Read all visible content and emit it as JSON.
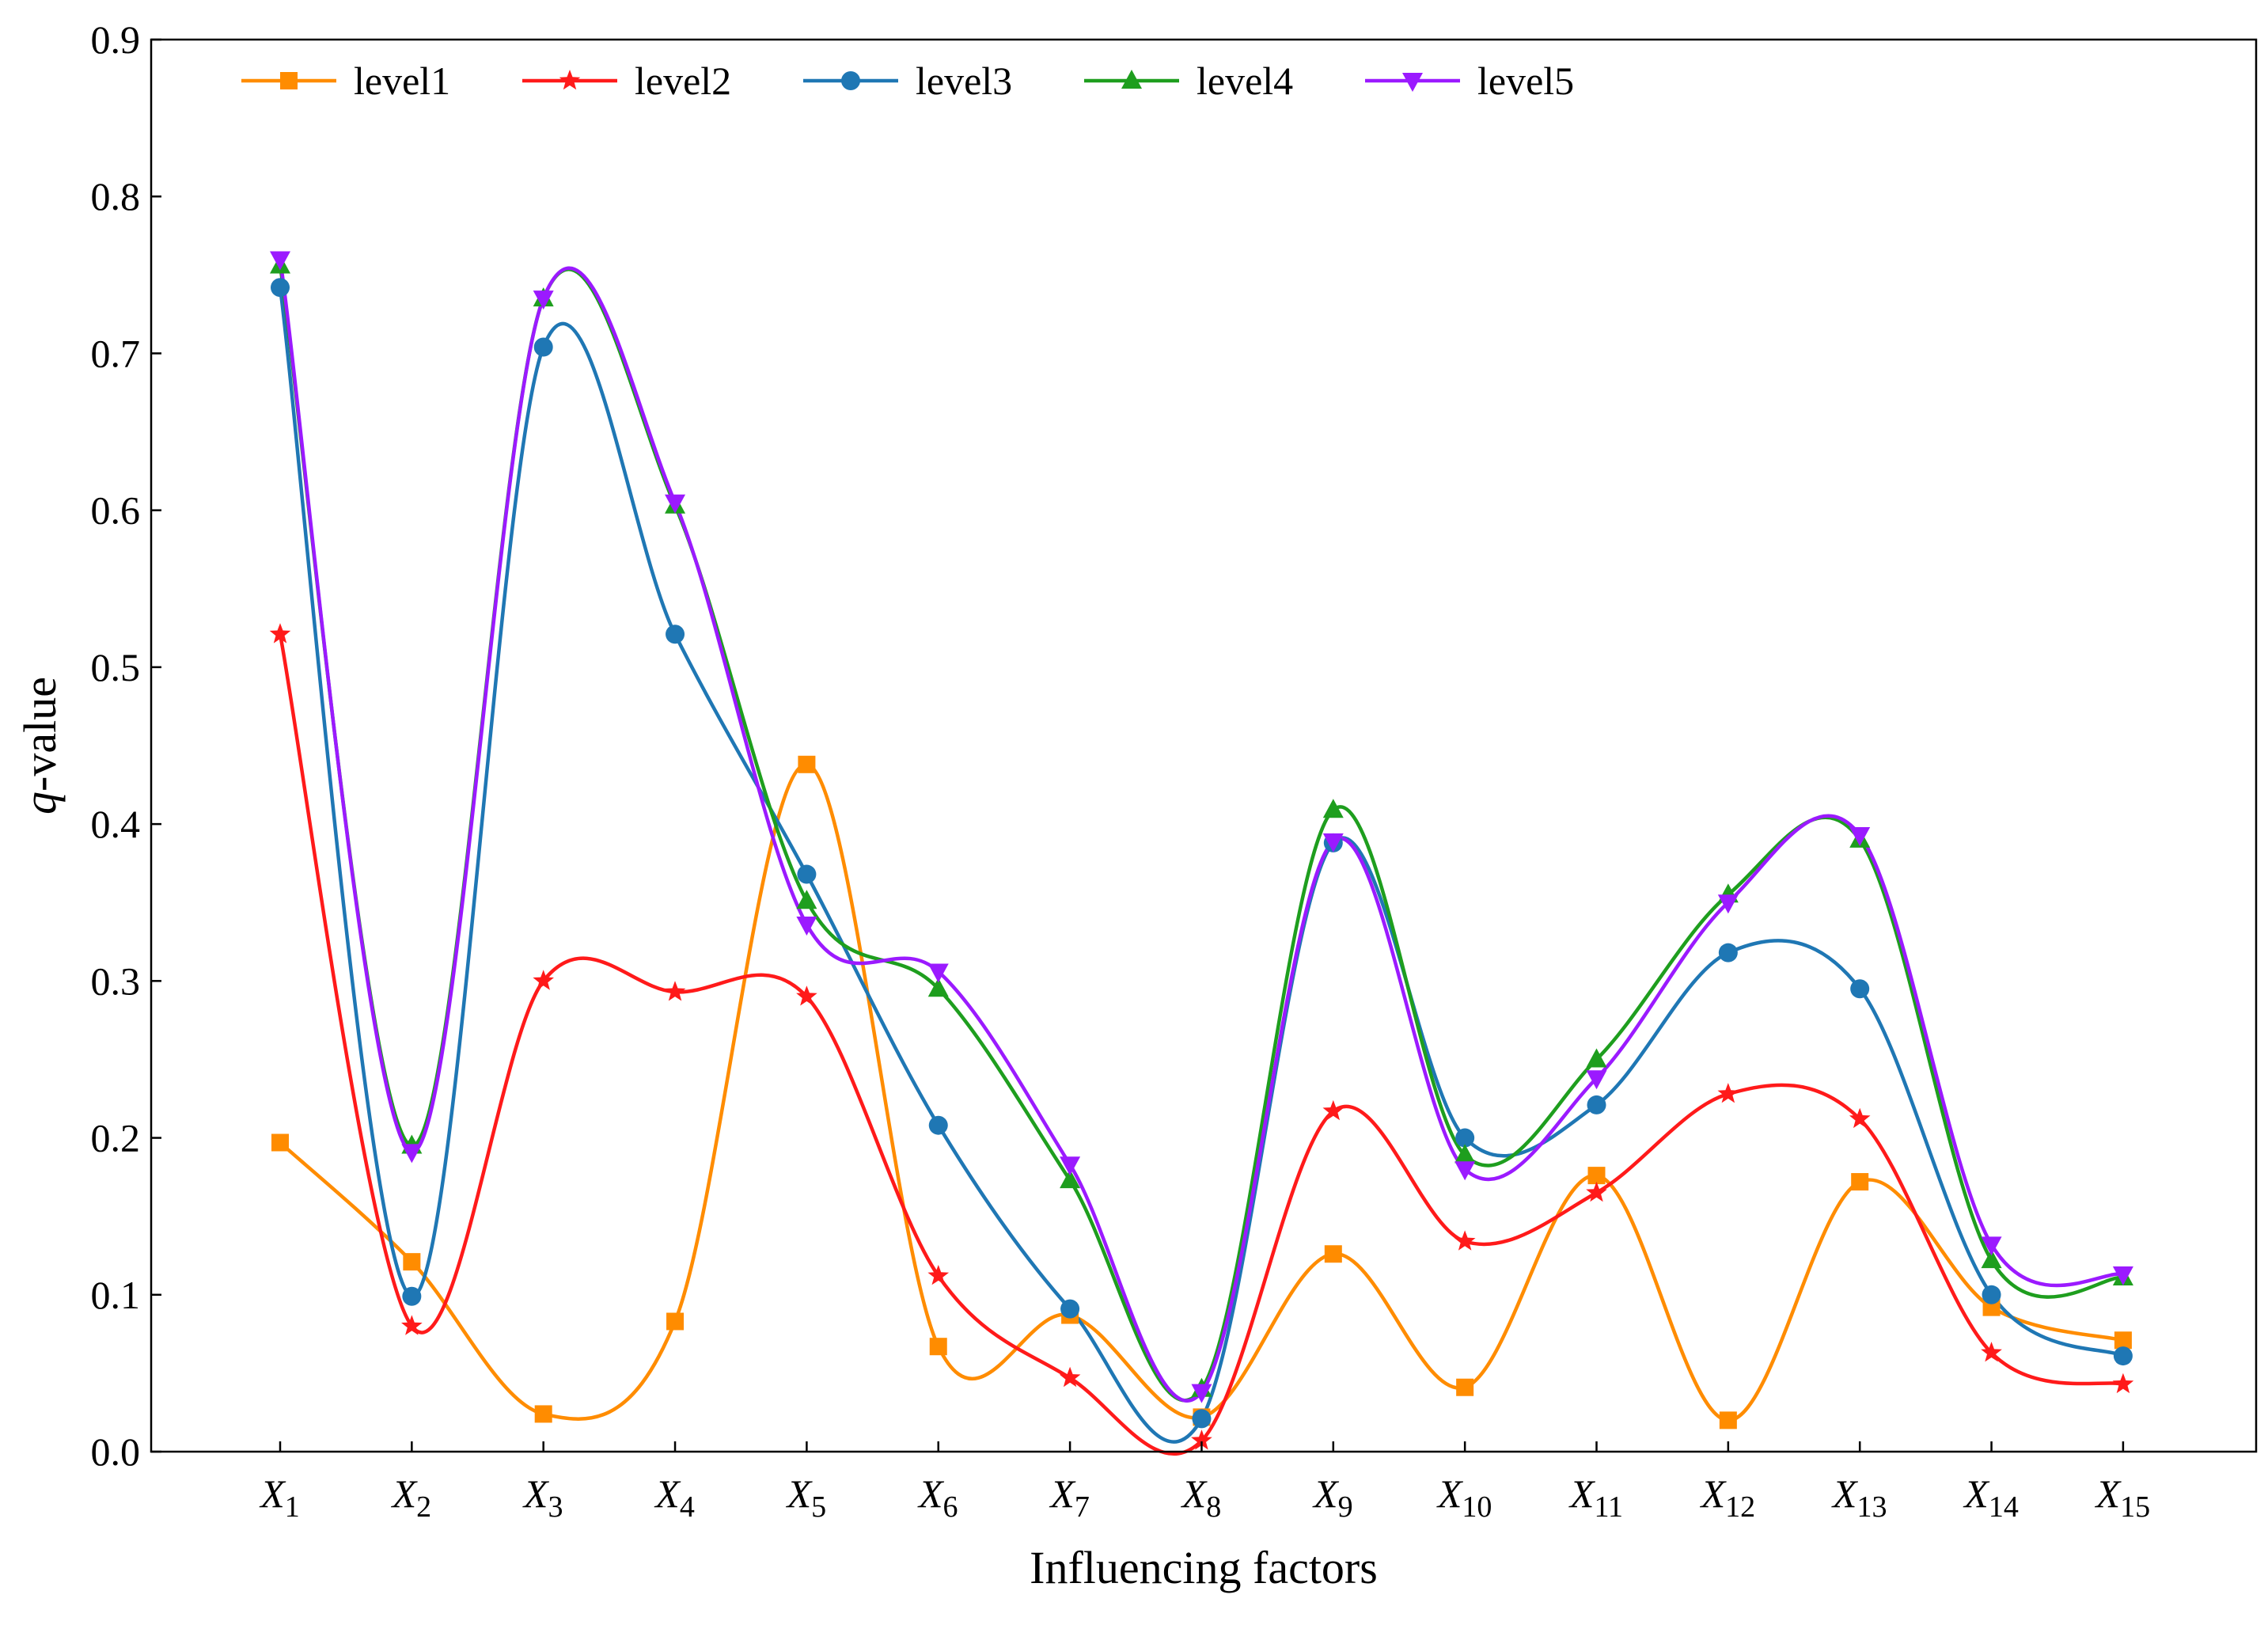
{
  "chart_data": {
    "type": "line",
    "title": "",
    "xlabel": "Influencing factors",
    "ylabel": "-value",
    "ylabel_italic_prefix": "q",
    "ylim": [
      0.0,
      0.9
    ],
    "yticks": [
      "0.0",
      "0.1",
      "0.2",
      "0.3",
      "0.4",
      "0.5",
      "0.6",
      "0.7",
      "0.8",
      "0.9"
    ],
    "categories": [
      {
        "base": "X",
        "sub": "1"
      },
      {
        "base": "X",
        "sub": "2"
      },
      {
        "base": "X",
        "sub": "3"
      },
      {
        "base": "X",
        "sub": "4"
      },
      {
        "base": "X",
        "sub": "5"
      },
      {
        "base": "X",
        "sub": "6"
      },
      {
        "base": "X",
        "sub": "7"
      },
      {
        "base": "X",
        "sub": "8"
      },
      {
        "base": "X",
        "sub": "9"
      },
      {
        "base": "X",
        "sub": "10"
      },
      {
        "base": "X",
        "sub": "11"
      },
      {
        "base": "X",
        "sub": "12"
      },
      {
        "base": "X",
        "sub": "13"
      },
      {
        "base": "X",
        "sub": "14"
      },
      {
        "base": "X",
        "sub": "15"
      }
    ],
    "legend_position": "top-left",
    "grid": false,
    "series": [
      {
        "name": "level1",
        "color": "#ff8c00",
        "marker": "square",
        "values": [
          0.197,
          0.121,
          0.024,
          0.083,
          0.438,
          0.067,
          0.087,
          0.022,
          0.126,
          0.041,
          0.176,
          0.02,
          0.172,
          0.092,
          0.071
        ]
      },
      {
        "name": "level2",
        "color": "#ff1a1a",
        "marker": "star",
        "values": [
          0.521,
          0.08,
          0.3,
          0.293,
          0.29,
          0.112,
          0.047,
          0.007,
          0.217,
          0.134,
          0.165,
          0.228,
          0.212,
          0.063,
          0.043
        ]
      },
      {
        "name": "level3",
        "color": "#1f77b4",
        "marker": "circle",
        "values": [
          0.742,
          0.099,
          0.704,
          0.521,
          0.368,
          0.208,
          0.091,
          0.021,
          0.388,
          0.2,
          0.221,
          0.318,
          0.295,
          0.1,
          0.061
        ]
      },
      {
        "name": "level4",
        "color": "#1e9e1e",
        "marker": "triangle-up",
        "values": [
          0.756,
          0.195,
          0.735,
          0.603,
          0.351,
          0.295,
          0.173,
          0.04,
          0.409,
          0.189,
          0.25,
          0.355,
          0.39,
          0.122,
          0.111
        ]
      },
      {
        "name": "level5",
        "color": "#9b1aff",
        "marker": "triangle-down",
        "values": [
          0.76,
          0.191,
          0.735,
          0.605,
          0.336,
          0.306,
          0.183,
          0.038,
          0.389,
          0.18,
          0.238,
          0.35,
          0.393,
          0.132,
          0.113
        ]
      }
    ]
  }
}
